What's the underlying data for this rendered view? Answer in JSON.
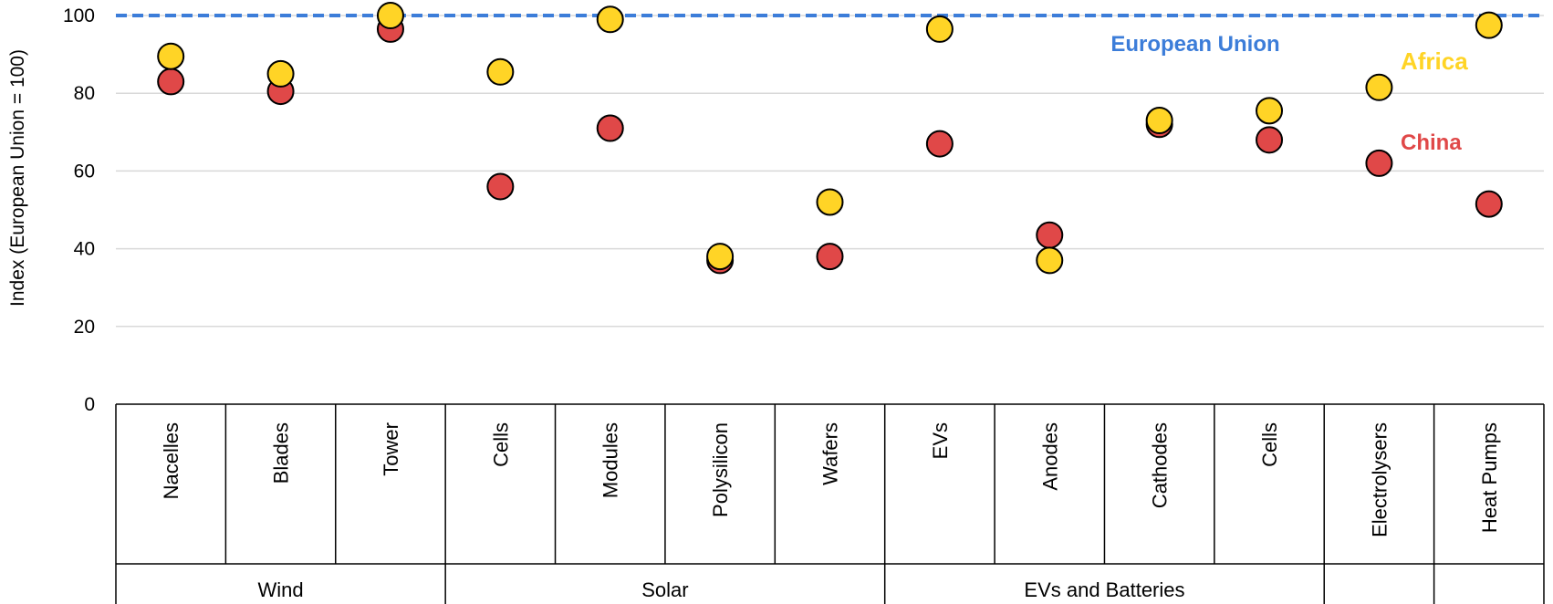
{
  "chart_data": {
    "type": "scatter",
    "ylabel": "Index (European Union = 100)",
    "ylim": [
      0,
      100
    ],
    "yticks": [
      0,
      20,
      40,
      60,
      80,
      100
    ],
    "grid": true,
    "categories": [
      "Nacelles",
      "Blades",
      "Tower",
      "Cells",
      "Modules",
      "Polysilicon",
      "Wafers",
      "EVs",
      "Anodes",
      "Cathodes",
      "Cells",
      "Electrolysers",
      "Heat Pumps"
    ],
    "groups": [
      {
        "label": "Wind",
        "count": 3
      },
      {
        "label": "Solar",
        "count": 4
      },
      {
        "label": "EVs and Batteries",
        "count": 4
      },
      {
        "label": "",
        "count": 1
      },
      {
        "label": "",
        "count": 1
      }
    ],
    "reference_line": {
      "name": "European Union",
      "value": 100,
      "color": "#3C7DD9"
    },
    "series": [
      {
        "name": "China",
        "color": "#E04848",
        "values": [
          83,
          80.5,
          96.5,
          56,
          71,
          37,
          38,
          67,
          43.5,
          72,
          68,
          62,
          51.5
        ]
      },
      {
        "name": "Africa",
        "color": "#FFD426",
        "values": [
          89.5,
          85,
          100,
          85.5,
          99,
          38,
          52,
          96.5,
          37,
          73,
          75.5,
          81.5,
          97.5
        ]
      }
    ],
    "legend_labels": [
      {
        "text": "European Union",
        "color": "#3C7DD9"
      },
      {
        "text": "Africa",
        "color": "#FFD426"
      },
      {
        "text": "China",
        "color": "#E04848"
      }
    ]
  }
}
